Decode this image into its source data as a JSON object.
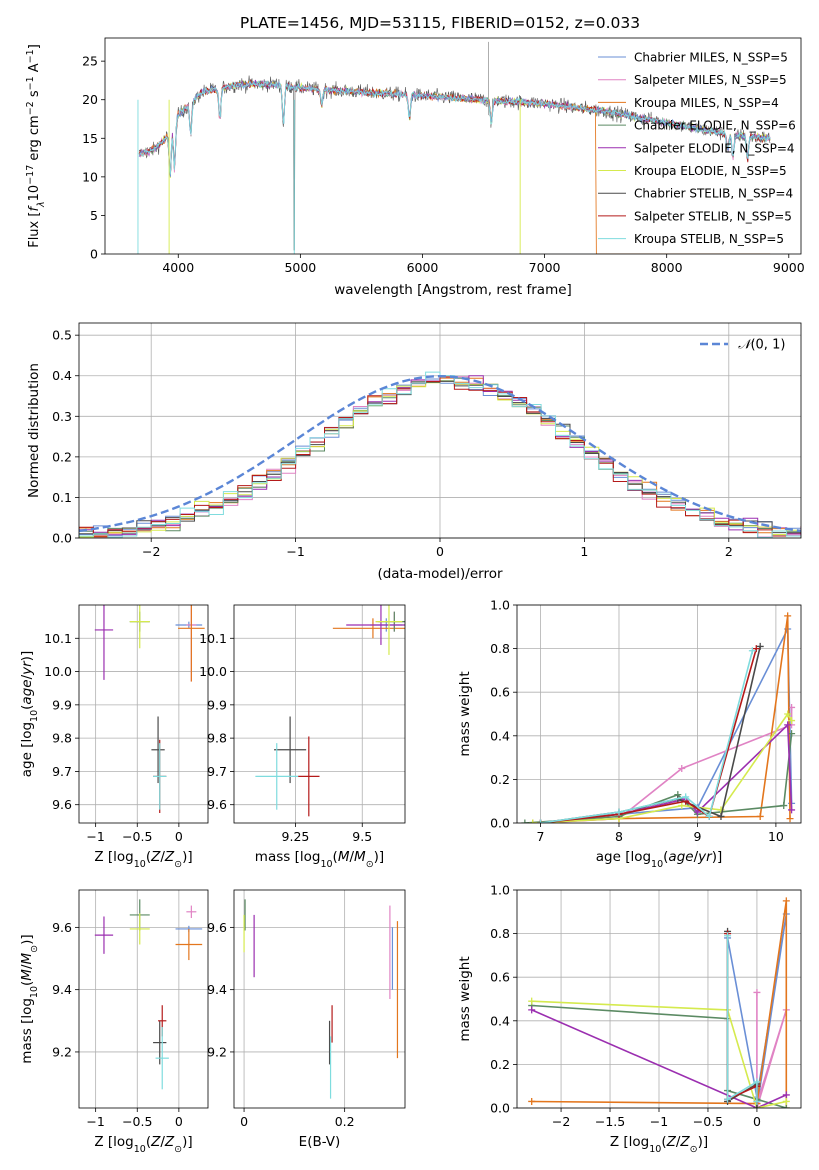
{
  "colors": {
    "chabrier_miles": "#6a8fd6",
    "salpeter_miles": "#e083c4",
    "kroupa_miles": "#e3761d",
    "chabrier_elodie": "#5b8a63",
    "salpeter_elodie": "#9b2fb0",
    "kroupa_elodie": "#d5ea4e",
    "chabrier_stelib": "#4a4a4a",
    "salpeter_stelib": "#b41a1a",
    "kroupa_stelib": "#7fdcde"
  },
  "chart_data": [
    {
      "type": "line",
      "title": "PLATE=1456, MJD=53115, FIBERID=0152, z=0.033",
      "xlabel": "wavelength [Angstrom, rest frame]",
      "ylabel": "Flux [f_λ 10^-17 erg cm^-2 s^-1 A^-1]",
      "xlim": [
        3400,
        9100
      ],
      "ylim": [
        0,
        28
      ],
      "xticks": [
        4000,
        5000,
        6000,
        7000,
        8000,
        9000
      ],
      "yticks": [
        0,
        5,
        10,
        15,
        20,
        25
      ],
      "legend_loc": "upper right",
      "series": [
        {
          "name": "Chabrier MILES, N_SSP=5",
          "color_key": "chabrier_miles"
        },
        {
          "name": "Salpeter MILES, N_SSP=5",
          "color_key": "salpeter_miles"
        },
        {
          "name": "Kroupa MILES, N_SSP=4",
          "color_key": "kroupa_miles"
        },
        {
          "name": "Chabrier ELODIE, N_SSP=6",
          "color_key": "chabrier_elodie"
        },
        {
          "name": "Salpeter ELODIE, N_SSP=4",
          "color_key": "salpeter_elodie"
        },
        {
          "name": "Kroupa ELODIE, N_SSP=5",
          "color_key": "kroupa_elodie"
        },
        {
          "name": "Chabrier STELIB, N_SSP=4",
          "color_key": "chabrier_stelib"
        },
        {
          "name": "Salpeter STELIB, N_SSP=5",
          "color_key": "salpeter_stelib"
        },
        {
          "name": "Kroupa STELIB, N_SSP=5",
          "color_key": "kroupa_stelib"
        }
      ],
      "continuum": [
        [
          3680,
          13
        ],
        [
          3800,
          13.5
        ],
        [
          3900,
          15
        ],
        [
          4000,
          18
        ],
        [
          4200,
          21
        ],
        [
          4500,
          22
        ],
        [
          4800,
          22
        ],
        [
          5000,
          21.5
        ],
        [
          5500,
          21
        ],
        [
          6000,
          20.5
        ],
        [
          6500,
          20
        ],
        [
          7000,
          19.5
        ],
        [
          7500,
          18.5
        ],
        [
          8000,
          17
        ],
        [
          8500,
          15.5
        ],
        [
          8850,
          15
        ]
      ]
    },
    {
      "type": "step",
      "xlabel": "(data-model)/error",
      "ylabel": "Normed distribution",
      "xlim": [
        -2.5,
        2.5
      ],
      "ylim": [
        0,
        0.53
      ],
      "xticks": [
        -2,
        -1,
        0,
        1,
        2
      ],
      "yticks": [
        0.0,
        0.1,
        0.2,
        0.3,
        0.4,
        0.5
      ],
      "legend": "N(0,1)",
      "legend_loc": "upper right"
    },
    {
      "type": "scatter",
      "xlabel": "Z [log10(Z/Z⊙)]",
      "ylabel": "age [log10(age/yr)]",
      "xlim": [
        -1.2,
        0.35
      ],
      "ylim": [
        9.545,
        10.2
      ],
      "xticks": [
        -1.0,
        -0.5,
        0.0
      ],
      "yticks": [
        9.6,
        9.7,
        9.8,
        9.9,
        10.0,
        10.1
      ],
      "points": [
        {
          "key": "chabrier_miles",
          "x": 0.12,
          "y": 10.14,
          "xerr": 0.16,
          "yerr": 0.01
        },
        {
          "key": "salpeter_miles",
          "x": 0.15,
          "y": 10.14,
          "xerr": 0.06,
          "yerr": 0.17
        },
        {
          "key": "kroupa_miles",
          "x": 0.15,
          "y": 10.13,
          "xerr": 0.16,
          "yerr": 0.16
        },
        {
          "key": "chabrier_elodie",
          "x": -0.47,
          "y": 10.15,
          "xerr": 0.12,
          "yerr": 0.03
        },
        {
          "key": "salpeter_elodie",
          "x": -0.9,
          "y": 10.125,
          "xerr": 0.11,
          "yerr": 0.15
        },
        {
          "key": "kroupa_elodie",
          "x": -0.47,
          "y": 10.15,
          "xerr": 0.12,
          "yerr": 0.08
        },
        {
          "key": "chabrier_stelib",
          "x": -0.25,
          "y": 9.765,
          "xerr": 0.08,
          "yerr": 0.1
        },
        {
          "key": "salpeter_stelib",
          "x": -0.23,
          "y": 9.685,
          "xerr": 0.08,
          "yerr": 0.11
        },
        {
          "key": "kroupa_stelib",
          "x": -0.23,
          "y": 9.685,
          "xerr": 0.08,
          "yerr": 0.1
        }
      ]
    },
    {
      "type": "scatter",
      "xlabel": "mass [log10(M/M⊙)]",
      "ylabel": "",
      "xlim": [
        9.02,
        9.66
      ],
      "ylim": [
        9.545,
        10.2
      ],
      "xticks": [
        9.25,
        9.5
      ],
      "yticks": [
        9.6,
        9.7,
        9.8,
        9.9,
        10.0,
        10.1
      ],
      "points": [
        {
          "key": "chabrier_miles",
          "x": 9.59,
          "y": 10.14,
          "xerr": 0.06,
          "yerr": 0.02
        },
        {
          "key": "salpeter_miles",
          "x": 9.62,
          "y": 10.15,
          "xerr": 0.07,
          "yerr": 0.03
        },
        {
          "key": "kroupa_miles",
          "x": 9.54,
          "y": 10.13,
          "xerr": 0.15,
          "yerr": 0.03
        },
        {
          "key": "chabrier_elodie",
          "x": 9.62,
          "y": 10.15,
          "xerr": 0.06,
          "yerr": 0.03
        },
        {
          "key": "salpeter_elodie",
          "x": 9.57,
          "y": 10.14,
          "xerr": 0.13,
          "yerr": 0.06
        },
        {
          "key": "kroupa_elodie",
          "x": 9.6,
          "y": 10.15,
          "xerr": 0.05,
          "yerr": 0.1
        },
        {
          "key": "chabrier_stelib",
          "x": 9.23,
          "y": 9.765,
          "xerr": 0.06,
          "yerr": 0.1
        },
        {
          "key": "salpeter_stelib",
          "x": 9.3,
          "y": 9.685,
          "xerr": 0.04,
          "yerr": 0.12
        },
        {
          "key": "kroupa_stelib",
          "x": 9.18,
          "y": 9.685,
          "xerr": 0.08,
          "yerr": 0.1
        }
      ]
    },
    {
      "type": "line",
      "xlabel": "age [log10(age/yr)]",
      "ylabel": "mass weight",
      "xlim": [
        6.7,
        10.32
      ],
      "ylim": [
        0,
        1
      ],
      "xticks": [
        7,
        8,
        9,
        10
      ],
      "yticks": [
        0.0,
        0.2,
        0.4,
        0.6,
        0.8,
        1.0
      ],
      "series": [
        {
          "key": "chabrier_miles",
          "x": [
            7.0,
            8.0,
            9.0,
            10.15,
            10.2
          ],
          "y": [
            0.0,
            0.04,
            0.07,
            0.89,
            0.09
          ]
        },
        {
          "key": "salpeter_miles",
          "x": [
            7.0,
            8.0,
            8.8,
            10.2,
            10.2
          ],
          "y": [
            0.0,
            0.02,
            0.25,
            0.45,
            0.53
          ]
        },
        {
          "key": "kroupa_miles",
          "x": [
            6.9,
            8.0,
            9.8,
            10.15,
            10.18
          ],
          "y": [
            0.0,
            0.02,
            0.03,
            0.95,
            0.02
          ]
        },
        {
          "key": "chabrier_elodie",
          "x": [
            6.8,
            8.0,
            8.75,
            9.0,
            10.1,
            10.2
          ],
          "y": [
            0.0,
            0.03,
            0.13,
            0.04,
            0.08,
            0.41
          ]
        },
        {
          "key": "salpeter_elodie",
          "x": [
            7.0,
            8.0,
            8.85,
            9.0,
            10.15,
            10.2
          ],
          "y": [
            0.0,
            0.04,
            0.11,
            0.05,
            0.45,
            0.06
          ]
        },
        {
          "key": "kroupa_elodie",
          "x": [
            6.9,
            8.0,
            8.8,
            9.3,
            10.15,
            10.2
          ],
          "y": [
            0.0,
            0.02,
            0.08,
            0.06,
            0.5,
            0.47
          ]
        },
        {
          "key": "chabrier_stelib",
          "x": [
            7.0,
            8.0,
            8.75,
            9.3,
            9.8
          ],
          "y": [
            0.0,
            0.05,
            0.11,
            0.03,
            0.81
          ]
        },
        {
          "key": "salpeter_stelib",
          "x": [
            7.0,
            8.0,
            8.85,
            9.15,
            9.75
          ],
          "y": [
            0.0,
            0.04,
            0.1,
            0.03,
            0.8
          ]
        },
        {
          "key": "kroupa_stelib",
          "x": [
            7.0,
            8.0,
            8.85,
            9.15,
            9.7
          ],
          "y": [
            0.0,
            0.05,
            0.12,
            0.03,
            0.79
          ]
        }
      ]
    },
    {
      "type": "scatter",
      "xlabel": "Z [log10(Z/Z⊙)]",
      "ylabel": "mass [log10(M/M⊙)]",
      "xlim": [
        -1.2,
        0.35
      ],
      "ylim": [
        9.02,
        9.72
      ],
      "xticks": [
        -1.0,
        -0.5,
        0.0
      ],
      "yticks": [
        9.2,
        9.4,
        9.6
      ],
      "points": [
        {
          "key": "chabrier_miles",
          "x": 0.12,
          "y": 9.595,
          "xerr": 0.16,
          "yerr": 0.01
        },
        {
          "key": "salpeter_miles",
          "x": 0.15,
          "y": 9.65,
          "xerr": 0.06,
          "yerr": 0.02
        },
        {
          "key": "kroupa_miles",
          "x": 0.12,
          "y": 9.545,
          "xerr": 0.16,
          "yerr": 0.05
        },
        {
          "key": "chabrier_elodie",
          "x": -0.47,
          "y": 9.64,
          "xerr": 0.12,
          "yerr": 0.05
        },
        {
          "key": "salpeter_elodie",
          "x": -0.9,
          "y": 9.575,
          "xerr": 0.11,
          "yerr": 0.06
        },
        {
          "key": "kroupa_elodie",
          "x": -0.47,
          "y": 9.595,
          "xerr": 0.12,
          "yerr": 0.05
        },
        {
          "key": "chabrier_stelib",
          "x": -0.23,
          "y": 9.23,
          "xerr": 0.08,
          "yerr": 0.07
        },
        {
          "key": "salpeter_stelib",
          "x": -0.2,
          "y": 9.3,
          "xerr": 0.05,
          "yerr": 0.05
        },
        {
          "key": "kroupa_stelib",
          "x": -0.2,
          "y": 9.18,
          "xerr": 0.08,
          "yerr": 0.1
        }
      ]
    },
    {
      "type": "scatter",
      "xlabel": "E(B-V)",
      "ylabel": "",
      "xlim": [
        -0.02,
        0.32
      ],
      "ylim": [
        9.02,
        9.72
      ],
      "xticks": [
        0.0,
        0.2
      ],
      "yticks": [
        9.2,
        9.4,
        9.6
      ],
      "points": [
        {
          "key": "chabrier_miles",
          "x": 0.295,
          "y": 9.5,
          "yerr": 0.1
        },
        {
          "key": "salpeter_miles",
          "x": 0.29,
          "y": 9.52,
          "yerr": 0.15
        },
        {
          "key": "kroupa_miles",
          "x": 0.305,
          "y": 9.4,
          "yerr": 0.22
        },
        {
          "key": "chabrier_elodie",
          "x": 0.002,
          "y": 9.64,
          "yerr": 0.05
        },
        {
          "key": "salpeter_elodie",
          "x": 0.02,
          "y": 9.54,
          "yerr": 0.1
        },
        {
          "key": "kroupa_elodie",
          "x": 0.0,
          "y": 9.58,
          "yerr": 0.06
        },
        {
          "key": "chabrier_stelib",
          "x": 0.17,
          "y": 9.23,
          "yerr": 0.07
        },
        {
          "key": "salpeter_stelib",
          "x": 0.175,
          "y": 9.29,
          "yerr": 0.06
        },
        {
          "key": "kroupa_stelib",
          "x": 0.172,
          "y": 9.15,
          "yerr": 0.1
        }
      ]
    },
    {
      "type": "line",
      "xlabel": "Z [log10(Z/Z⊙)]",
      "ylabel": "mass weight",
      "xlim": [
        -2.45,
        0.45
      ],
      "ylim": [
        0,
        1
      ],
      "xticks": [
        -2.0,
        -1.5,
        -1.0,
        -0.5,
        0.0
      ],
      "yticks": [
        0.0,
        0.2,
        0.4,
        0.6,
        0.8,
        1.0
      ],
      "series": [
        {
          "key": "chabrier_miles",
          "x": [
            -0.3,
            0.0,
            0.3,
            0.0
          ],
          "y": [
            0.78,
            0.05,
            0.89,
            0.0
          ]
        },
        {
          "key": "salpeter_miles",
          "x": [
            0.0,
            0.0,
            0.3,
            0.0
          ],
          "y": [
            0.53,
            0.02,
            0.45,
            0.0
          ]
        },
        {
          "key": "kroupa_miles",
          "x": [
            -2.3,
            0.0,
            0.3,
            0.3
          ],
          "y": [
            0.03,
            0.02,
            0.95,
            0.0
          ]
        },
        {
          "key": "chabrier_elodie",
          "x": [
            -2.3,
            -0.3,
            -0.3,
            0.0,
            0.3
          ],
          "y": [
            0.47,
            0.41,
            0.08,
            0.04,
            0.0
          ]
        },
        {
          "key": "salpeter_elodie",
          "x": [
            -2.3,
            0.0,
            0.3
          ],
          "y": [
            0.45,
            0.0,
            0.06
          ]
        },
        {
          "key": "kroupa_elodie",
          "x": [
            -2.3,
            -0.3,
            0.0,
            0.3
          ],
          "y": [
            0.49,
            0.45,
            0.0,
            0.03
          ]
        },
        {
          "key": "chabrier_stelib",
          "x": [
            -0.3,
            -0.3,
            0.0,
            0.0
          ],
          "y": [
            0.81,
            0.03,
            0.11,
            0.0
          ]
        },
        {
          "key": "salpeter_stelib",
          "x": [
            -0.3,
            -0.3,
            0.0,
            0.0
          ],
          "y": [
            0.8,
            0.04,
            0.1,
            0.03
          ]
        },
        {
          "key": "kroupa_stelib",
          "x": [
            -0.3,
            -0.3,
            0.0,
            0.0
          ],
          "y": [
            0.79,
            0.04,
            0.12,
            0.03
          ]
        }
      ]
    }
  ]
}
